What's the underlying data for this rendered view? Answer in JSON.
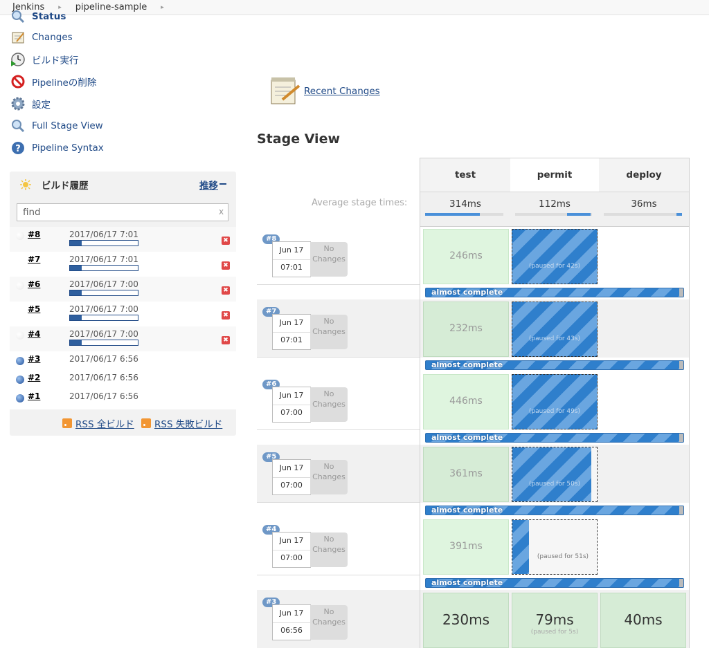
{
  "breadcrumb": [
    "Jenkins",
    "pipeline-sample"
  ],
  "tasks": [
    {
      "label": "Status",
      "icon": "magnifier-icon"
    },
    {
      "label": "Changes",
      "icon": "notepad-icon"
    },
    {
      "label": "ビルド実行",
      "icon": "clock-play-icon"
    },
    {
      "label": "Pipelineの削除",
      "icon": "no-entry-icon"
    },
    {
      "label": "設定",
      "icon": "gear-icon"
    },
    {
      "label": "Full Stage View",
      "icon": "magnifier-icon"
    },
    {
      "label": "Pipeline Syntax",
      "icon": "help-icon"
    }
  ],
  "build_history": {
    "title": "ビルド履歴",
    "trend": "推移",
    "search_placeholder": "find",
    "search_clear": "x",
    "builds": [
      {
        "num": "#8",
        "date": "2017/06/17 7:01",
        "running": true
      },
      {
        "num": "#7",
        "date": "2017/06/17 7:01",
        "running": true
      },
      {
        "num": "#6",
        "date": "2017/06/17 7:00",
        "running": true
      },
      {
        "num": "#5",
        "date": "2017/06/17 7:00",
        "running": true
      },
      {
        "num": "#4",
        "date": "2017/06/17 7:00",
        "running": true
      },
      {
        "num": "#3",
        "date": "2017/06/17 6:56",
        "running": false
      },
      {
        "num": "#2",
        "date": "2017/06/17 6:56",
        "running": false
      },
      {
        "num": "#1",
        "date": "2017/06/17 6:56",
        "running": false
      }
    ],
    "rss_all": "RSS 全ビルド",
    "rss_failed": "RSS 失敗ビルド"
  },
  "recent_changes": "Recent Changes",
  "stage_view": {
    "title": "Stage View",
    "avg_label": "Average stage times:",
    "stages": [
      {
        "name": "test",
        "avg": "314ms",
        "avg_fill": 0.7
      },
      {
        "name": "permit",
        "avg": "112ms",
        "avg_fill": 0.25
      },
      {
        "name": "deploy",
        "avg": "36ms",
        "avg_fill": 0.08
      }
    ],
    "runs": [
      {
        "badge": "#8",
        "date": "Jun 17",
        "time": "07:01",
        "changes": "No Changes",
        "test": "246ms",
        "permit_paused": "(paused for 42s)",
        "progress": "almost complete"
      },
      {
        "badge": "#7",
        "date": "Jun 17",
        "time": "07:01",
        "changes": "No Changes",
        "test": "232ms",
        "permit_paused": "(paused for 43s)",
        "progress": "almost complete"
      },
      {
        "badge": "#6",
        "date": "Jun 17",
        "time": "07:00",
        "changes": "No Changes",
        "test": "446ms",
        "permit_paused": "(paused for 49s)",
        "progress": "almost complete"
      },
      {
        "badge": "#5",
        "date": "Jun 17",
        "time": "07:00",
        "changes": "No Changes",
        "test": "361ms",
        "permit_paused": "(paused for 50s)",
        "progress": "almost complete"
      },
      {
        "badge": "#4",
        "date": "Jun 17",
        "time": "07:00",
        "changes": "No Changes",
        "test": "391ms",
        "permit_paused": "(paused for 51s)",
        "progress": "almost complete"
      },
      {
        "badge": "#3",
        "date": "Jun 17",
        "time": "06:56",
        "changes": "No Changes",
        "test": "230ms",
        "permit": "79ms",
        "permit_paused": "(paused for 5s)",
        "deploy": "40ms"
      }
    ]
  },
  "colors": {
    "link": "#204a87",
    "success": "#dff5df",
    "running": "#2f7fcc"
  }
}
